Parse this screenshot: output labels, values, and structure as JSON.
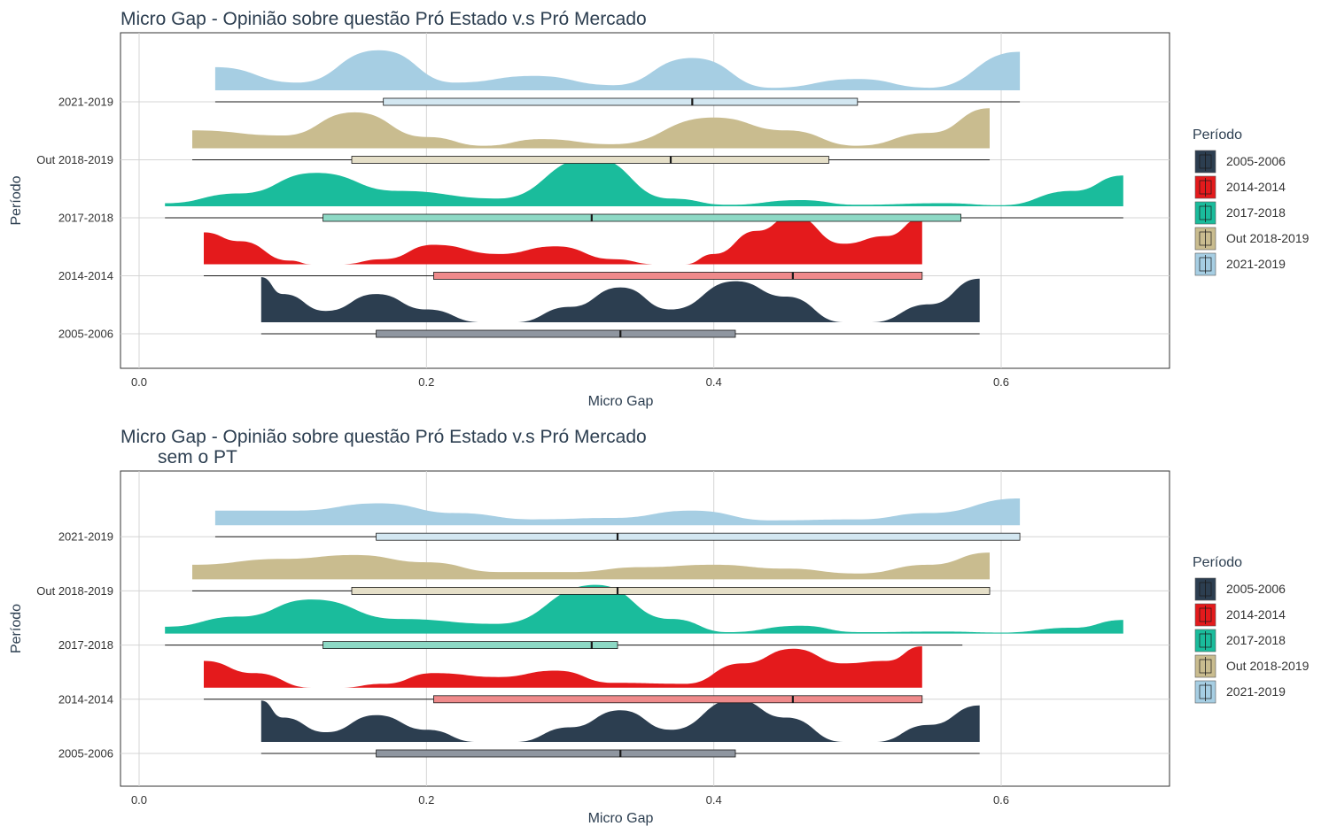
{
  "chart_data": [
    {
      "type": "raincloud",
      "title": "Micro Gap - Opinião sobre questão Pró Estado v.s Pró Mercado",
      "subtitle": "",
      "xlabel": "Micro Gap",
      "ylabel": "Período",
      "xlim": [
        -0.03,
        0.72
      ],
      "xticks": [
        0.0,
        0.2,
        0.4,
        0.6
      ],
      "xtick_labels": [
        "0.0",
        "0.2",
        "0.4",
        "0.6"
      ],
      "categories": [
        "2005-2006",
        "2014-2014",
        "2017-2018",
        "Out 2018-2019",
        "2021-2019"
      ],
      "legend": {
        "title": "Período",
        "position": "right"
      },
      "grid": true,
      "series": [
        {
          "name": "2005-2006",
          "color": "#2c3e50",
          "box_color": "#8f96a0",
          "min": 0.085,
          "q1": 0.165,
          "median": 0.335,
          "q3": 0.415,
          "max": 0.585,
          "density_x": [
            0.085,
            0.1,
            0.13,
            0.165,
            0.2,
            0.238,
            0.262,
            0.3,
            0.335,
            0.37,
            0.415,
            0.45,
            0.49,
            0.51,
            0.55,
            0.585
          ],
          "density_y": [
            0.88,
            0.55,
            0.22,
            0.55,
            0.25,
            0.0,
            0.0,
            0.3,
            0.68,
            0.25,
            0.8,
            0.5,
            0.0,
            0.0,
            0.35,
            0.85
          ]
        },
        {
          "name": "2014-2014",
          "color": "#e41a1c",
          "box_color": "#ef8a8b",
          "min": 0.045,
          "q1": 0.205,
          "median": 0.455,
          "q3": 0.545,
          "max": 0.545,
          "density_x": [
            0.045,
            0.07,
            0.105,
            0.12,
            0.14,
            0.17,
            0.205,
            0.25,
            0.29,
            0.33,
            0.36,
            0.38,
            0.4,
            0.43,
            0.455,
            0.49,
            0.52,
            0.545
          ],
          "density_y": [
            0.62,
            0.45,
            0.07,
            0.0,
            0.0,
            0.1,
            0.38,
            0.2,
            0.35,
            0.1,
            0.0,
            0.0,
            0.2,
            0.65,
            0.95,
            0.4,
            0.55,
            0.9
          ]
        },
        {
          "name": "2017-2018",
          "color": "#1abc9c",
          "box_color": "#8dd9c5",
          "min": 0.018,
          "q1": 0.128,
          "median": 0.315,
          "q3": 0.572,
          "max": 0.685,
          "density_x": [
            0.018,
            0.07,
            0.123,
            0.18,
            0.25,
            0.315,
            0.37,
            0.41,
            0.46,
            0.5,
            0.56,
            0.6,
            0.65,
            0.685
          ],
          "density_y": [
            0.06,
            0.25,
            0.65,
            0.3,
            0.15,
            0.95,
            0.15,
            0.03,
            0.12,
            0.03,
            0.06,
            0.02,
            0.3,
            0.6
          ]
        },
        {
          "name": "Out 2018-2019",
          "color": "#c9bc8f",
          "box_color": "#e5dfc8",
          "min": 0.037,
          "q1": 0.148,
          "median": 0.37,
          "q3": 0.48,
          "max": 0.592,
          "density_x": [
            0.037,
            0.1,
            0.15,
            0.2,
            0.24,
            0.28,
            0.33,
            0.4,
            0.45,
            0.5,
            0.55,
            0.592
          ],
          "density_y": [
            0.35,
            0.25,
            0.7,
            0.22,
            0.05,
            0.18,
            0.08,
            0.6,
            0.35,
            0.05,
            0.3,
            0.78
          ]
        },
        {
          "name": "2021-2019",
          "color": "#a6cee3",
          "box_color": "#d3e7f1",
          "min": 0.053,
          "q1": 0.17,
          "median": 0.385,
          "q3": 0.5,
          "max": 0.613,
          "density_x": [
            0.053,
            0.11,
            0.167,
            0.22,
            0.275,
            0.33,
            0.385,
            0.44,
            0.5,
            0.55,
            0.613
          ],
          "density_y": [
            0.45,
            0.15,
            0.78,
            0.15,
            0.28,
            0.1,
            0.63,
            0.05,
            0.22,
            0.05,
            0.75
          ]
        }
      ]
    },
    {
      "type": "raincloud",
      "title": "Micro Gap - Opinião sobre questão Pró Estado v.s Pró Mercado",
      "subtitle": "sem o PT",
      "xlabel": "Micro Gap",
      "ylabel": "Período",
      "xlim": [
        -0.03,
        0.72
      ],
      "xticks": [
        0.0,
        0.2,
        0.4,
        0.6
      ],
      "xtick_labels": [
        "0.0",
        "0.2",
        "0.4",
        "0.6"
      ],
      "categories": [
        "2005-2006",
        "2014-2014",
        "2017-2018",
        "Out 2018-2019",
        "2021-2019"
      ],
      "legend": {
        "title": "Período",
        "position": "right"
      },
      "grid": true,
      "series": [
        {
          "name": "2005-2006",
          "color": "#2c3e50",
          "box_color": "#8f96a0",
          "min": 0.085,
          "q1": 0.165,
          "median": 0.335,
          "q3": 0.415,
          "max": 0.585,
          "density_x": [
            0.085,
            0.1,
            0.13,
            0.165,
            0.2,
            0.235,
            0.262,
            0.3,
            0.335,
            0.37,
            0.415,
            0.45,
            0.49,
            0.512,
            0.55,
            0.585
          ],
          "density_y": [
            0.85,
            0.5,
            0.2,
            0.55,
            0.25,
            0.0,
            0.0,
            0.3,
            0.65,
            0.25,
            0.88,
            0.5,
            0.0,
            0.0,
            0.35,
            0.75
          ]
        },
        {
          "name": "2014-2014",
          "color": "#e41a1c",
          "box_color": "#ef8a8b",
          "min": 0.045,
          "q1": 0.205,
          "median": 0.455,
          "q3": 0.545,
          "max": 0.545,
          "density_x": [
            0.045,
            0.08,
            0.12,
            0.14,
            0.17,
            0.205,
            0.25,
            0.29,
            0.33,
            0.38,
            0.42,
            0.455,
            0.49,
            0.52,
            0.545
          ],
          "density_y": [
            0.55,
            0.3,
            0.0,
            0.0,
            0.08,
            0.3,
            0.22,
            0.35,
            0.1,
            0.08,
            0.5,
            0.8,
            0.5,
            0.55,
            0.85
          ]
        },
        {
          "name": "2017-2018",
          "color": "#1abc9c",
          "box_color": "#8dd9c5",
          "min": 0.018,
          "q1": 0.128,
          "median": 0.315,
          "q3": 0.333,
          "max": 0.573,
          "density_x": [
            0.018,
            0.07,
            0.12,
            0.18,
            0.25,
            0.318,
            0.37,
            0.41,
            0.46,
            0.5,
            0.56,
            0.6,
            0.65,
            0.685
          ],
          "density_y": [
            0.14,
            0.35,
            0.7,
            0.3,
            0.2,
            1.0,
            0.3,
            0.03,
            0.16,
            0.03,
            0.04,
            0.02,
            0.12,
            0.28
          ]
        },
        {
          "name": "Out 2018-2019",
          "color": "#c9bc8f",
          "box_color": "#e5dfc8",
          "min": 0.037,
          "q1": 0.148,
          "median": 0.333,
          "q3": 0.592,
          "max": 0.592,
          "density_x": [
            0.037,
            0.1,
            0.15,
            0.2,
            0.25,
            0.3,
            0.35,
            0.4,
            0.45,
            0.5,
            0.55,
            0.592
          ],
          "density_y": [
            0.3,
            0.42,
            0.5,
            0.35,
            0.15,
            0.15,
            0.25,
            0.3,
            0.22,
            0.12,
            0.3,
            0.55
          ]
        },
        {
          "name": "2021-2019",
          "color": "#a6cee3",
          "box_color": "#d3e7f1",
          "min": 0.053,
          "q1": 0.165,
          "median": 0.333,
          "q3": 0.613,
          "max": 0.613,
          "density_x": [
            0.053,
            0.11,
            0.167,
            0.22,
            0.275,
            0.33,
            0.385,
            0.44,
            0.5,
            0.55,
            0.613
          ],
          "density_y": [
            0.3,
            0.3,
            0.45,
            0.25,
            0.12,
            0.15,
            0.3,
            0.1,
            0.12,
            0.25,
            0.55
          ]
        }
      ]
    }
  ]
}
